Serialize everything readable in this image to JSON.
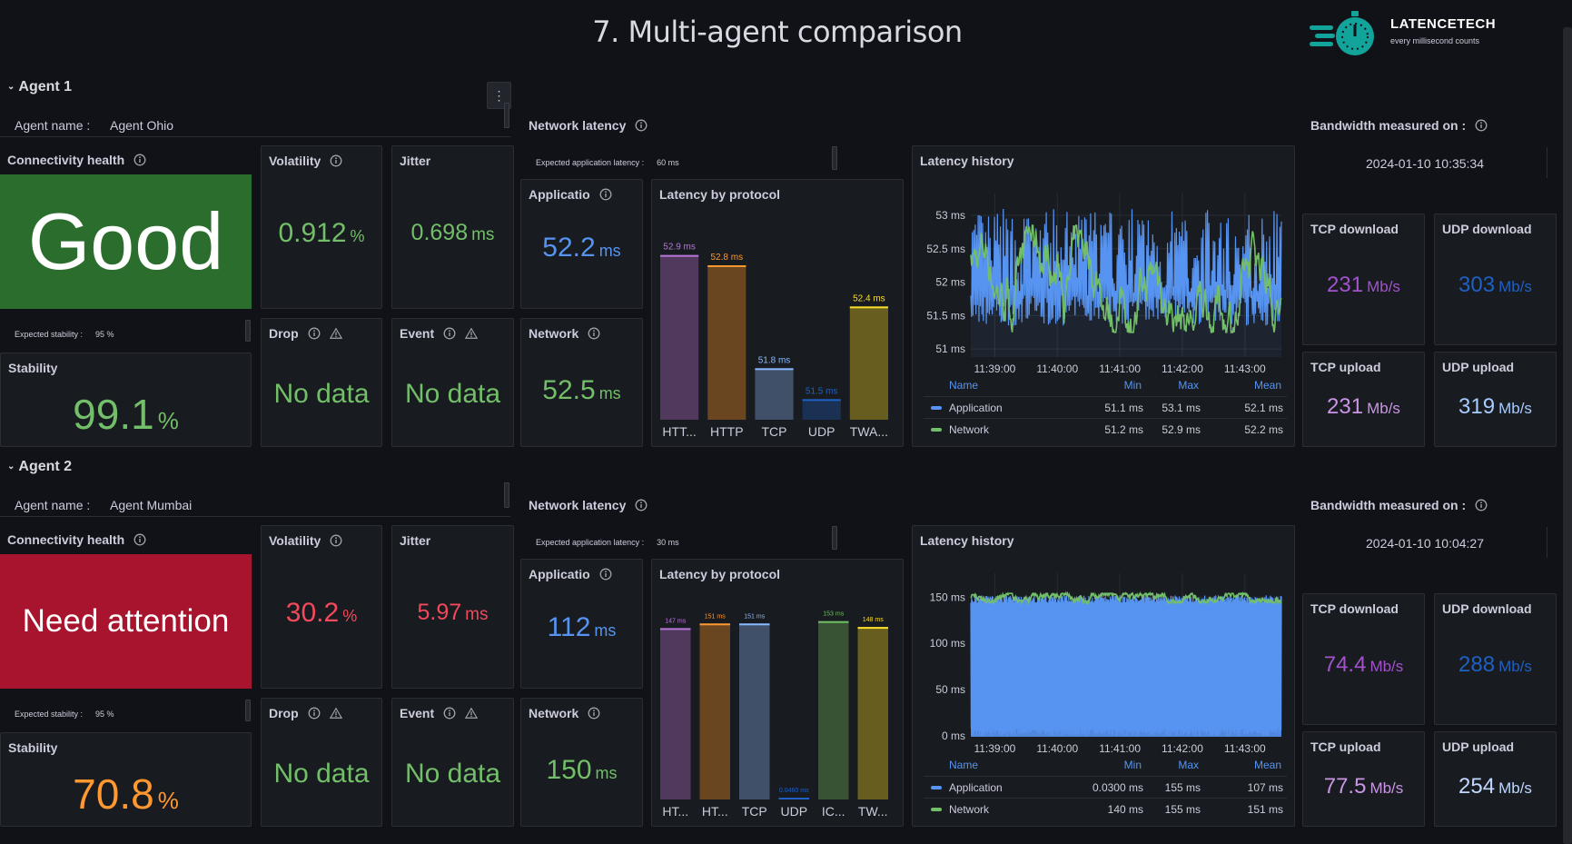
{
  "title": "7. Multi-agent comparison",
  "logo": {
    "name": "LATENCETECH",
    "tagline": "every millisecond counts",
    "color": "#12a39a"
  },
  "agents": [
    {
      "header": "Agent 1",
      "agent_name_label": "Agent name :",
      "agent_name": "Agent Ohio",
      "connectivity": {
        "title": "Connectivity health",
        "status": "Good",
        "color": "#2b6d2d"
      },
      "volatility": {
        "title": "Volatility",
        "value": "0.912",
        "unit": "%",
        "color": "#73bf69"
      },
      "jitter": {
        "title": "Jitter",
        "value": "0.698",
        "unit": "ms",
        "color": "#73bf69"
      },
      "expected_stability": {
        "label": "Expected stability :",
        "value": "95 %"
      },
      "stability": {
        "title": "Stability",
        "value": "99.1",
        "unit": "%",
        "color": "#73bf69"
      },
      "drop": {
        "title": "Drop",
        "value": "No data",
        "color": "#73bf69"
      },
      "event": {
        "title": "Event",
        "value": "No data",
        "color": "#73bf69"
      },
      "network_latency_title": "Network latency",
      "expected_latency": {
        "label": "Expected application latency :",
        "value": "60 ms"
      },
      "application": {
        "title": "Applicatio",
        "value": "52.2",
        "unit": "ms",
        "color": "#5794f2"
      },
      "network": {
        "title": "Network",
        "value": "52.5",
        "unit": "ms",
        "color": "#73bf69"
      },
      "bandwidth": {
        "title": "Bandwidth measured on :",
        "date": "2024-01-10 10:35:34",
        "tiles": [
          {
            "title": "TCP download",
            "value": "231",
            "unit": "Mb/s",
            "color": "#a352cc"
          },
          {
            "title": "UDP download",
            "value": "303",
            "unit": "Mb/s",
            "color": "#1f60c4"
          },
          {
            "title": "TCP upload",
            "value": "231",
            "unit": "Mb/s",
            "color": "#ca95e5"
          },
          {
            "title": "UDP upload",
            "value": "319",
            "unit": "Mb/s",
            "color": "#a8ccff"
          }
        ]
      }
    },
    {
      "header": "Agent 2",
      "agent_name_label": "Agent name :",
      "agent_name": "Agent Mumbai",
      "connectivity": {
        "title": "Connectivity health",
        "status": "Need attention",
        "color": "#a8132d"
      },
      "volatility": {
        "title": "Volatility",
        "value": "30.2",
        "unit": "%",
        "color": "#f2495c"
      },
      "jitter": {
        "title": "Jitter",
        "value": "5.97",
        "unit": "ms",
        "color": "#f2495c"
      },
      "expected_stability": {
        "label": "Expected stability :",
        "value": "95 %"
      },
      "stability": {
        "title": "Stability",
        "value": "70.8",
        "unit": "%",
        "color": "#ff9830"
      },
      "drop": {
        "title": "Drop",
        "value": "No data",
        "color": "#73bf69"
      },
      "event": {
        "title": "Event",
        "value": "No data",
        "color": "#73bf69"
      },
      "network_latency_title": "Network latency",
      "expected_latency": {
        "label": "Expected application latency :",
        "value": "30 ms"
      },
      "application": {
        "title": "Applicatio",
        "value": "112",
        "unit": "ms",
        "color": "#5794f2"
      },
      "network": {
        "title": "Network",
        "value": "150",
        "unit": "ms",
        "color": "#73bf69"
      },
      "bandwidth": {
        "title": "Bandwidth measured on :",
        "date": "2024-01-10 10:04:27",
        "tiles": [
          {
            "title": "TCP download",
            "value": "74.4",
            "unit": "Mb/s",
            "color": "#a352cc"
          },
          {
            "title": "UDP download",
            "value": "288",
            "unit": "Mb/s",
            "color": "#1f60c4"
          },
          {
            "title": "TCP upload",
            "value": "77.5",
            "unit": "Mb/s",
            "color": "#ca95e5"
          },
          {
            "title": "UDP upload",
            "value": "254",
            "unit": "Mb/s",
            "color": "#c0d8ff"
          }
        ]
      }
    }
  ],
  "chart_data": [
    {
      "type": "bar",
      "title": "Latency by protocol",
      "categories": [
        "HTT...",
        "HTTP",
        "TCP",
        "UDP",
        "TWA..."
      ],
      "values": [
        52.9,
        52.8,
        51.8,
        51.5,
        52.4
      ],
      "value_labels": [
        "52.9 ms",
        "52.8 ms",
        "51.8 ms",
        "51.5 ms",
        "52.4 ms"
      ],
      "colors": [
        "#b877d9",
        "#ff9830",
        "#8ab8ff",
        "#1f60c4",
        "#fade2a"
      ],
      "ylim": [
        51.3,
        53.1
      ]
    },
    {
      "type": "line",
      "title": "Latency history",
      "ylim": [
        50.88,
        53.19
      ],
      "yticks": [
        51,
        51.5,
        52,
        52.5,
        53
      ],
      "ytick_labels": [
        "51 ms",
        "51.5 ms",
        "52 ms",
        "52.5 ms",
        "53 ms"
      ],
      "xlim": [
        "11:38:37",
        "11:43:35"
      ],
      "xticks": [
        "11:39:00",
        "11:40:00",
        "11:41:00",
        "11:42:00",
        "11:43:00"
      ],
      "legend_columns": [
        "Name",
        "Min",
        "Max",
        "Mean"
      ],
      "series": [
        {
          "name": "Application",
          "min": "51.1 ms",
          "max": "53.1 ms",
          "mean": "52.1 ms",
          "color": "#5794f2"
        },
        {
          "name": "Network",
          "min": "51.2 ms",
          "max": "52.9 ms",
          "mean": "52.2 ms",
          "color": "#73bf69"
        }
      ]
    },
    {
      "type": "bar",
      "title": "Latency by protocol",
      "categories": [
        "HT...",
        "HT...",
        "TCP",
        "UDP",
        "IC...",
        "TW..."
      ],
      "values": [
        147,
        151,
        151,
        0.046,
        153,
        148
      ],
      "value_labels": [
        "147 ms",
        "151 ms",
        "151 ms",
        "0.0460 ms",
        "153 ms",
        "148 ms"
      ],
      "colors": [
        "#b877d9",
        "#ff9830",
        "#8ab8ff",
        "#1f60c4",
        "#73bf69",
        "#fade2a"
      ],
      "ylim": [
        0,
        159
      ]
    },
    {
      "type": "line",
      "title": "Latency history",
      "ylim": [
        -1,
        166
      ],
      "yticks": [
        0,
        50,
        100,
        150
      ],
      "ytick_labels": [
        "0 ms",
        "50 ms",
        "100 ms",
        "150 ms"
      ],
      "xlim": [
        "11:38:37",
        "11:43:35"
      ],
      "xticks": [
        "11:39:00",
        "11:40:00",
        "11:41:00",
        "11:42:00",
        "11:43:00"
      ],
      "legend_columns": [
        "Name",
        "Min",
        "Max",
        "Mean"
      ],
      "series": [
        {
          "name": "Application",
          "min": "0.0300 ms",
          "max": "155 ms",
          "mean": "107 ms",
          "color": "#5794f2"
        },
        {
          "name": "Network",
          "min": "140 ms",
          "max": "155 ms",
          "mean": "151 ms",
          "color": "#73bf69"
        }
      ]
    }
  ]
}
